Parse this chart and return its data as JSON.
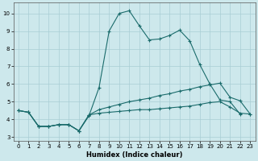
{
  "xlabel": "Humidex (Indice chaleur)",
  "xlim": [
    -0.5,
    23.5
  ],
  "ylim": [
    2.8,
    10.6
  ],
  "yticks": [
    3,
    4,
    5,
    6,
    7,
    8,
    9,
    10
  ],
  "xticks": [
    0,
    1,
    2,
    3,
    4,
    5,
    6,
    7,
    8,
    9,
    10,
    11,
    12,
    13,
    14,
    15,
    16,
    17,
    18,
    19,
    20,
    21,
    22,
    23
  ],
  "bg_color": "#cde8ec",
  "grid_color": "#a8cdd4",
  "line_color": "#1a6b6b",
  "line1_x": [
    0,
    1,
    2,
    3,
    4,
    5,
    6,
    7,
    8,
    9,
    10,
    11,
    12,
    13,
    14,
    15,
    16,
    17,
    18,
    19,
    20,
    21,
    22
  ],
  "line1_y": [
    4.5,
    4.4,
    3.6,
    3.6,
    3.7,
    3.7,
    3.35,
    4.2,
    5.8,
    9.0,
    10.0,
    10.15,
    9.3,
    8.5,
    8.55,
    8.75,
    9.05,
    8.45,
    7.1,
    6.0,
    5.1,
    5.0,
    4.3
  ],
  "line2_x": [
    0,
    1,
    2,
    3,
    4,
    5,
    6,
    7,
    8,
    9,
    10,
    11,
    12,
    13,
    14,
    15,
    16,
    17,
    18,
    19,
    20,
    21,
    22,
    23
  ],
  "line2_y": [
    4.5,
    4.4,
    3.6,
    3.6,
    3.7,
    3.7,
    3.35,
    4.25,
    4.55,
    4.7,
    4.85,
    5.0,
    5.1,
    5.2,
    5.35,
    5.45,
    5.6,
    5.7,
    5.85,
    5.95,
    6.05,
    5.25,
    5.05,
    4.3
  ],
  "line3_x": [
    0,
    1,
    2,
    3,
    4,
    5,
    6,
    7,
    8,
    9,
    10,
    11,
    12,
    13,
    14,
    15,
    16,
    17,
    18,
    19,
    20,
    21,
    22,
    23
  ],
  "line3_y": [
    4.5,
    4.4,
    3.6,
    3.6,
    3.7,
    3.7,
    3.35,
    4.25,
    4.35,
    4.4,
    4.45,
    4.5,
    4.55,
    4.55,
    4.6,
    4.65,
    4.7,
    4.75,
    4.85,
    4.95,
    5.0,
    4.7,
    4.35,
    4.3
  ]
}
